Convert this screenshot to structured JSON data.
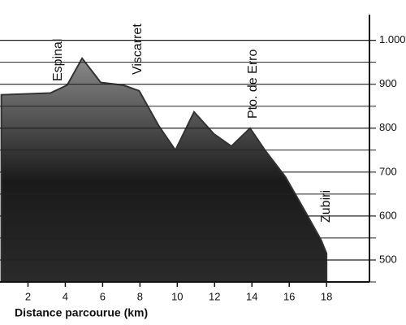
{
  "chart_data": {
    "type": "area",
    "x_label": "Distance parcourue (km)",
    "x": [
      0.57,
      3.2,
      4.1,
      4.9,
      5.9,
      7.1,
      7.96,
      9.0,
      9.9,
      10.9,
      11.96,
      12.9,
      13.9,
      14.7,
      15.8,
      16.9,
      17.7,
      18.0
    ],
    "values": [
      876,
      880,
      898,
      959,
      904,
      898,
      885,
      806,
      750,
      837,
      787,
      759,
      800,
      750,
      689,
      607,
      546,
      515
    ],
    "color": "#333333",
    "annotations": [
      "Espinal",
      "Viscarret",
      "Pto. de Erro",
      "Zubiri"
    ],
    "xlim": [
      0.5,
      20.3
    ],
    "xticks": [
      2,
      4,
      6,
      8,
      10,
      12,
      14,
      16,
      18
    ],
    "ylim": [
      450,
      1040
    ],
    "yticks": [
      500,
      600,
      700,
      800,
      900,
      {
        "value": 1000,
        "label": "1.000"
      }
    ],
    "minor_grid": [
      450,
      550,
      650,
      750,
      850,
      950
    ],
    "grid": true
  }
}
